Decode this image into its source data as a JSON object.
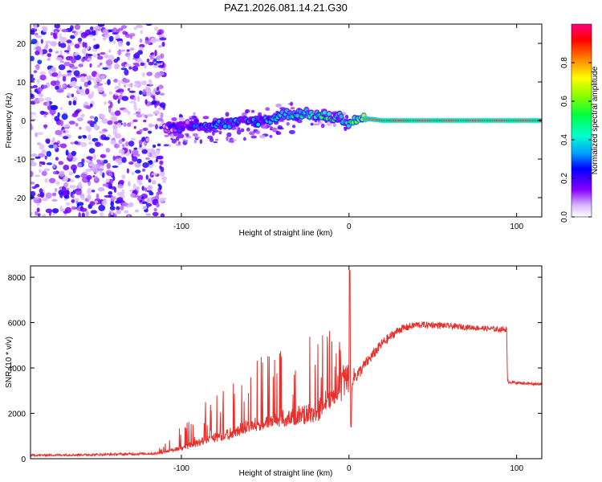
{
  "title": "PAZ1.2026.081.14.21.G30",
  "chart_data": [
    {
      "type": "heatmap",
      "xlabel": "Height of straight line (km)",
      "ylabel": "Frequency (Hz)",
      "xlim": [
        -190,
        115
      ],
      "ylim": [
        -25,
        25
      ],
      "xticks": [
        -100,
        0,
        100
      ],
      "xtick_labels": [
        "-100",
        "0",
        "100"
      ],
      "yticks": [
        -20,
        -10,
        0,
        10,
        20
      ],
      "ytick_labels": [
        "-20",
        "-10",
        "0",
        "10",
        "20"
      ],
      "colorbar": {
        "label": "Normalized spectral amplitude",
        "ticks": [
          0.0,
          0.2,
          0.4,
          0.6,
          0.8
        ],
        "tick_labels": [
          "0.0",
          "0.2",
          "0.4",
          "0.6",
          "0.8"
        ],
        "range": [
          0,
          1
        ]
      },
      "signal_ridge": {
        "x": [
          -110,
          -100,
          -90,
          -80,
          -70,
          -60,
          -50,
          -40,
          -30,
          -20,
          -10,
          -5,
          0,
          5,
          10,
          20,
          40,
          60,
          80,
          100,
          115
        ],
        "y": [
          -2,
          -1.5,
          -1,
          -1,
          -0.8,
          -0.3,
          0,
          1.5,
          2,
          1.5,
          0.8,
          1,
          -1,
          0.5,
          0.5,
          0,
          0,
          0,
          0,
          0,
          0
        ],
        "amplitude": [
          0.15,
          0.2,
          0.22,
          0.25,
          0.25,
          0.27,
          0.3,
          0.35,
          0.4,
          0.45,
          0.55,
          0.5,
          0.45,
          0.6,
          0.8,
          0.9,
          0.95,
          0.95,
          0.95,
          0.95,
          0.95
        ]
      },
      "noise_region_x": [
        -190,
        -110
      ]
    },
    {
      "type": "line",
      "xlabel": "Height of straight line (km)",
      "ylabel": "SNR (10 * v/v)",
      "xlim": [
        -190,
        115
      ],
      "ylim": [
        0,
        8500
      ],
      "xticks": [
        -100,
        0,
        100
      ],
      "xtick_labels": [
        "-100",
        "0",
        "100"
      ],
      "yticks": [
        0,
        2000,
        4000,
        6000,
        8000
      ],
      "ytick_labels": [
        "0",
        "2000",
        "4000",
        "6000",
        "8000"
      ],
      "color": "#e8302c",
      "series": [
        {
          "name": "SNR",
          "x": [
            -190,
            -150,
            -115,
            -100,
            -90,
            -80,
            -70,
            -60,
            -50,
            -40,
            -30,
            -20,
            -10,
            -5,
            0,
            0.5,
            1,
            2,
            5,
            10,
            20,
            30,
            40,
            50,
            60,
            70,
            80,
            90,
            94,
            94.5,
            100,
            110,
            115
          ],
          "y": [
            150,
            180,
            230,
            600,
            900,
            1200,
            1400,
            1800,
            2000,
            2200,
            2400,
            2600,
            3000,
            3300,
            3600,
            8300,
            1500,
            3600,
            3700,
            4200,
            5100,
            5700,
            5900,
            5900,
            5850,
            5800,
            5750,
            5700,
            5700,
            3400,
            3350,
            3300,
            3300
          ],
          "noise_amplitude": [
            40,
            50,
            60,
            400,
            600,
            800,
            900,
            1100,
            1200,
            1300,
            1500,
            1800,
            1200,
            900,
            700,
            0,
            0,
            400,
            300,
            250,
            220,
            180,
            150,
            140,
            130,
            120,
            120,
            120,
            120,
            80,
            60,
            60,
            60
          ]
        }
      ]
    }
  ]
}
